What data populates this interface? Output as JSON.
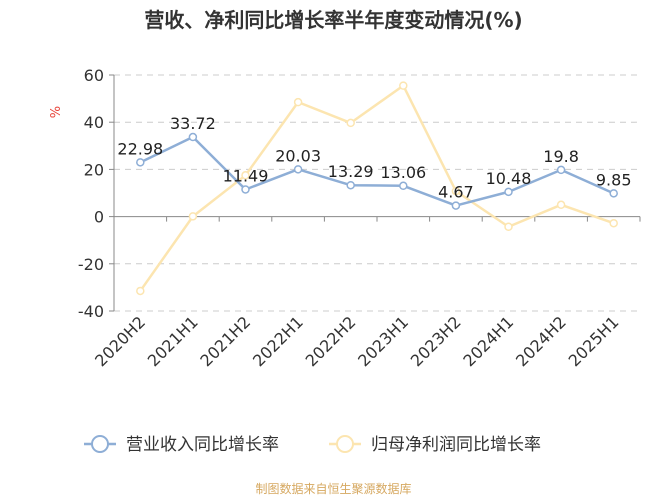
{
  "title": "营收、净利同比增长率半年度变动情况(%)",
  "source": "制图数据来自恒生聚源数据库",
  "colors": {
    "revenue": "#8eaed6",
    "profit": "#fce5b0",
    "source": "#d6a860",
    "ylabel": "#e8443a",
    "grid": "#cccccc"
  },
  "chart_data": {
    "type": "line",
    "ylabel": "%",
    "ylim": [
      -40,
      60
    ],
    "yticks": [
      60,
      40,
      20,
      0,
      -20,
      -40
    ],
    "grid": true,
    "legend_position": "bottom",
    "x": [
      "2020H2",
      "2021H1",
      "2021H2",
      "2022H1",
      "2022H2",
      "2023H1",
      "2023H2",
      "2024H1",
      "2024H2",
      "2025H1"
    ],
    "series": [
      {
        "name": "营业收入同比增长率",
        "values": [
          22.98,
          33.72,
          11.49,
          20.03,
          13.29,
          13.06,
          4.67,
          10.48,
          19.8,
          9.85
        ],
        "labels": [
          "22.98",
          "33.72",
          "11.49",
          "20.03",
          "13.29",
          "13.06",
          "4.67",
          "10.48",
          "19.8",
          "9.85"
        ]
      },
      {
        "name": "归母净利润同比增长率",
        "values": [
          -31.5,
          0.1,
          17.5,
          48.5,
          39.7,
          55.5,
          10.8,
          -4.3,
          5.0,
          -2.8
        ]
      }
    ]
  }
}
